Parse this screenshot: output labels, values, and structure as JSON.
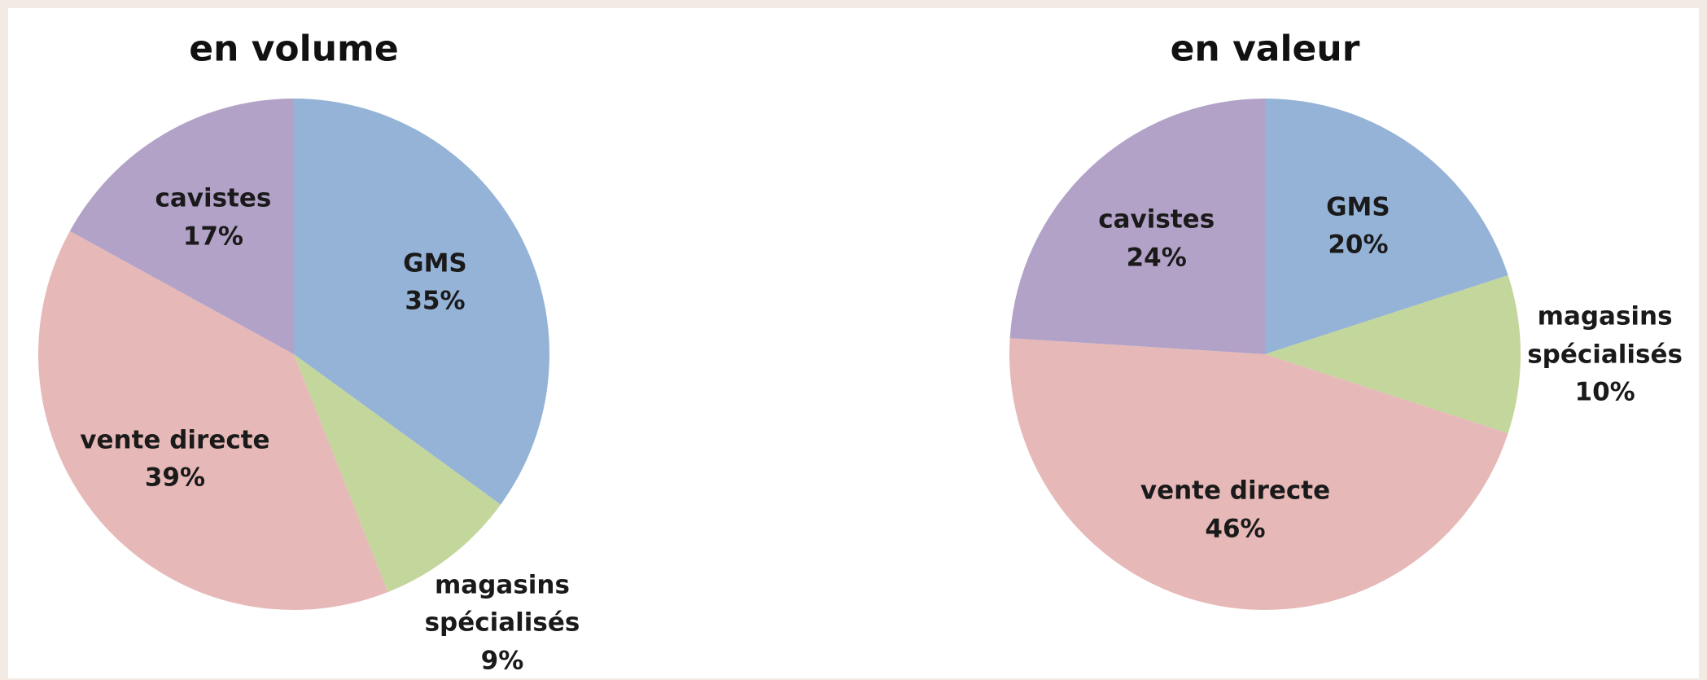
{
  "chart_data": [
    {
      "type": "pie",
      "title": "en volume",
      "categories": [
        "GMS",
        "magasins spécialisés",
        "vente directe",
        "cavistes"
      ],
      "values": [
        35,
        9,
        39,
        17
      ],
      "value_labels": [
        "35%",
        "9%",
        "39%",
        "17%"
      ],
      "colors": [
        "#95b3d7",
        "#c3d69b",
        "#e6b9b8",
        "#b3a2c7"
      ]
    },
    {
      "type": "pie",
      "title": "en valeur",
      "categories": [
        "GMS",
        "magasins spécialisés",
        "vente directe",
        "cavistes"
      ],
      "values": [
        20,
        10,
        46,
        24
      ],
      "value_labels": [
        "20%",
        "10%",
        "46%",
        "24%"
      ],
      "colors": [
        "#95b3d7",
        "#c3d69b",
        "#e6b9b8",
        "#b3a2c7"
      ]
    }
  ]
}
